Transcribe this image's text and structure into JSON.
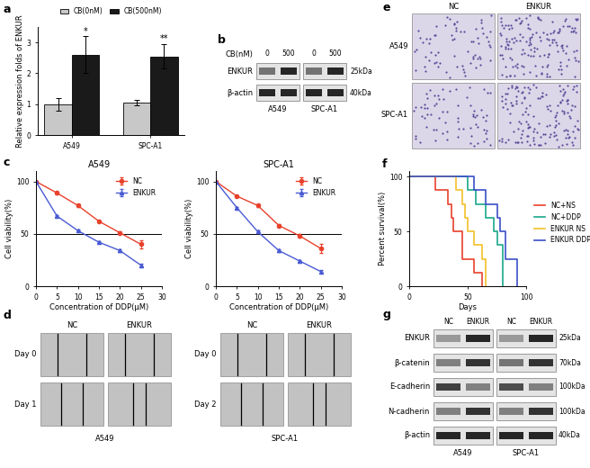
{
  "chart_data": [
    {
      "panel": "a",
      "type": "bar",
      "categories": [
        "A549",
        "SPC-A1"
      ],
      "y_label": "Relative expression folds of ENKUR",
      "ylim": [
        0,
        3.5
      ],
      "yticks": [
        0,
        1,
        2,
        3
      ],
      "legend": "upper center",
      "series": [
        {
          "name": "CB(0nM)",
          "color": "#c8c8c8",
          "values": [
            1.0,
            1.05
          ],
          "errors": [
            0.2,
            0.1
          ]
        },
        {
          "name": "CB(500nM)",
          "color": "#1a1a1a",
          "values": [
            2.6,
            2.55
          ],
          "errors": [
            0.6,
            0.4
          ],
          "annotations": [
            "*",
            "**"
          ]
        }
      ]
    },
    {
      "panel": "c",
      "type": "line",
      "title": "A549",
      "x": [
        0,
        5,
        10,
        15,
        20,
        25
      ],
      "x_label": "Concentration of DDP(μM)",
      "y_label": "Cell viability(%)",
      "xlim": [
        0,
        30
      ],
      "xticks": [
        0,
        5,
        10,
        15,
        20,
        25,
        30
      ],
      "ylim": [
        0,
        110
      ],
      "yticks": [
        0,
        50,
        100
      ],
      "reference_line": 50,
      "legend": "upper right",
      "series": [
        {
          "name": "NC",
          "color": "#e8412c",
          "marker": "circle",
          "values": [
            100,
            89,
            77,
            62,
            51,
            40
          ],
          "errors": [
            0,
            1,
            1,
            1,
            1.5,
            4
          ]
        },
        {
          "name": "ENKUR",
          "color": "#4a5bd4",
          "marker": "triangle",
          "values": [
            100,
            67,
            53,
            42,
            34,
            20
          ],
          "errors": [
            0,
            1,
            1,
            1,
            1,
            1.5
          ]
        }
      ]
    },
    {
      "type": "line",
      "title": "SPC-A1",
      "x": [
        0,
        5,
        10,
        15,
        20,
        25
      ],
      "x_label": "Concentration of DDP(μM)",
      "y_label": "Cell viability(%)",
      "xlim": [
        0,
        30
      ],
      "xticks": [
        0,
        5,
        10,
        15,
        20,
        25,
        30
      ],
      "ylim": [
        0,
        110
      ],
      "yticks": [
        0,
        50,
        100
      ],
      "reference_line": 50,
      "legend": "upper right",
      "series": [
        {
          "name": "NC",
          "color": "#e8412c",
          "marker": "circle",
          "values": [
            100,
            86,
            77,
            58,
            48,
            36
          ],
          "errors": [
            0,
            1,
            1,
            1,
            2,
            4
          ]
        },
        {
          "name": "ENKUR",
          "color": "#4a5bd4",
          "marker": "triangle",
          "values": [
            100,
            75,
            52,
            34,
            24,
            14
          ],
          "errors": [
            0,
            1,
            1,
            1,
            1,
            1.5
          ]
        }
      ]
    },
    {
      "panel": "f",
      "type": "step",
      "x_label": "Days",
      "y_label": "Percent survival(%)",
      "xlim": [
        0,
        100
      ],
      "xticks": [
        0,
        50,
        100
      ],
      "ylim": [
        0,
        105
      ],
      "yticks": [
        0,
        50,
        100
      ],
      "legend": "right",
      "series": [
        {
          "name": "NC+NS",
          "color": "#e8412c",
          "x": [
            0,
            22,
            33,
            36,
            38,
            45,
            55,
            62
          ],
          "values": [
            100,
            87.5,
            75,
            62.5,
            50,
            25,
            12.5,
            0
          ]
        },
        {
          "name": "NC+DDP",
          "color": "#1aa88a",
          "x": [
            0,
            50,
            57,
            65,
            72,
            75,
            80
          ],
          "values": [
            100,
            87.5,
            75,
            62.5,
            50,
            37.5,
            0
          ]
        },
        {
          "name": "ENKUR NS",
          "color": "#f2c029",
          "x": [
            0,
            40,
            45,
            48,
            50,
            55,
            62,
            65
          ],
          "values": [
            100,
            87.5,
            75,
            62.5,
            50,
            37.5,
            25,
            0
          ]
        },
        {
          "name": "ENKUR DDP",
          "color": "#3b4fc8",
          "x": [
            0,
            55,
            65,
            75,
            78,
            82,
            92
          ],
          "values": [
            100,
            87.5,
            75,
            62.5,
            50,
            25,
            0
          ]
        }
      ]
    }
  ],
  "blots": [
    {
      "panel": "b",
      "header": "CB(nM)",
      "groups": [
        {
          "name": "A549",
          "lanes": [
            "0",
            "500"
          ]
        },
        {
          "name": "SPC-A1",
          "lanes": [
            "0",
            "500"
          ]
        }
      ],
      "rows": [
        {
          "name": "ENKUR",
          "size": "25kDa"
        },
        {
          "name": "β-actin",
          "size": "40kDa"
        }
      ]
    },
    {
      "panel": "g",
      "groups": [
        {
          "name": "A549",
          "lanes": [
            "NC",
            "ENKUR"
          ]
        },
        {
          "name": "SPC-A1",
          "lanes": [
            "NC",
            "ENKUR"
          ]
        }
      ],
      "rows": [
        {
          "name": "ENKUR",
          "size": "25kDa"
        },
        {
          "name": "β-catenin",
          "size": "70kDa"
        },
        {
          "name": "E-cadherin",
          "size": "100kDa"
        },
        {
          "name": "N-cadherin",
          "size": "100kDa"
        },
        {
          "name": "β-actin",
          "size": "40kDa"
        }
      ]
    }
  ],
  "micrographs": [
    {
      "panel": "d",
      "groups": [
        {
          "name": "A549",
          "columns": [
            "NC",
            "ENKUR"
          ],
          "rows": [
            "Day 0",
            "Day 1"
          ]
        },
        {
          "name": "SPC-A1",
          "columns": [
            "NC",
            "ENKUR"
          ],
          "rows": [
            "Day 0",
            "Day 2"
          ]
        }
      ]
    },
    {
      "panel": "e",
      "columns": [
        "NC",
        "ENKUR"
      ],
      "rows": [
        "A549",
        "SPC-A1"
      ]
    }
  ]
}
